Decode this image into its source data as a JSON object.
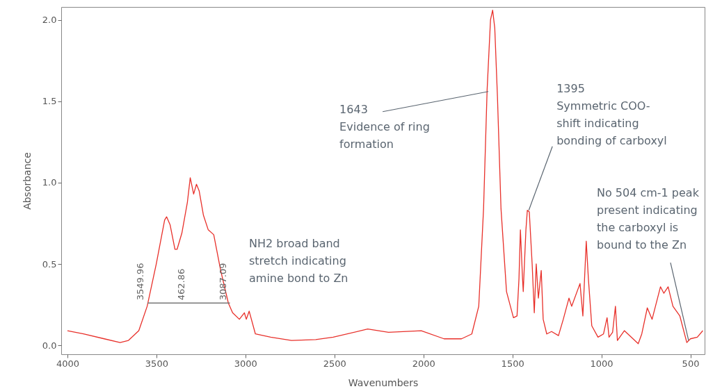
{
  "chart_data": {
    "type": "line",
    "xlabel": "Wavenumbers",
    "ylabel": "Absorbance",
    "x": [
      4000,
      3910,
      3793,
      3704,
      3657,
      3599,
      3552,
      3501,
      3454,
      3443,
      3423,
      3396,
      3384,
      3357,
      3326,
      3310,
      3291,
      3275,
      3260,
      3236,
      3209,
      3178,
      3139,
      3096,
      3072,
      3034,
      3006,
      2995,
      2979,
      2944,
      2858,
      2741,
      2605,
      2507,
      2313,
      2196,
      2012,
      1884,
      1786,
      1728,
      1689,
      1662,
      1642,
      1623,
      1611,
      1599,
      1584,
      1564,
      1533,
      1494,
      1474,
      1463,
      1455,
      1443,
      1439,
      1424,
      1416,
      1405,
      1389,
      1377,
      1366,
      1354,
      1338,
      1327,
      1307,
      1280,
      1241,
      1214,
      1182,
      1167,
      1120,
      1104,
      1085,
      1073,
      1054,
      1019,
      988,
      968,
      957,
      937,
      921,
      910,
      871,
      793,
      773,
      742,
      715,
      668,
      649,
      625,
      598,
      559,
      520,
      500,
      461,
      430
    ],
    "series": [
      {
        "color": "#e8302a",
        "values": [
          0.09,
          0.07,
          0.04,
          0.017,
          0.03,
          0.09,
          0.24,
          0.5,
          0.77,
          0.79,
          0.74,
          0.59,
          0.59,
          0.69,
          0.88,
          1.03,
          0.93,
          0.99,
          0.95,
          0.8,
          0.71,
          0.68,
          0.46,
          0.26,
          0.2,
          0.16,
          0.2,
          0.16,
          0.21,
          0.07,
          0.05,
          0.03,
          0.035,
          0.05,
          0.1,
          0.08,
          0.09,
          0.04,
          0.04,
          0.07,
          0.24,
          0.84,
          1.57,
          2.0,
          2.06,
          1.95,
          1.53,
          0.84,
          0.33,
          0.17,
          0.18,
          0.41,
          0.71,
          0.41,
          0.33,
          0.71,
          0.83,
          0.82,
          0.5,
          0.2,
          0.5,
          0.29,
          0.46,
          0.16,
          0.07,
          0.085,
          0.06,
          0.16,
          0.29,
          0.24,
          0.38,
          0.18,
          0.64,
          0.41,
          0.12,
          0.05,
          0.07,
          0.17,
          0.05,
          0.08,
          0.24,
          0.03,
          0.09,
          0.01,
          0.07,
          0.23,
          0.16,
          0.36,
          0.32,
          0.36,
          0.24,
          0.18,
          0.017,
          0.04,
          0.05,
          0.09
        ]
      }
    ],
    "xlim": [
      4035,
      420
    ],
    "ylim": [
      -0.055,
      2.08
    ],
    "xticks": [
      4000,
      3500,
      3000,
      2500,
      2000,
      1500,
      1000,
      500
    ],
    "yticks": [
      {
        "value": 0,
        "label": "0.0"
      },
      {
        "value": 0.5,
        "label": "0.5"
      },
      {
        "value": 1,
        "label": "1.0"
      },
      {
        "value": 1.5,
        "label": "1.5"
      },
      {
        "value": 2,
        "label": "2.0"
      }
    ],
    "grid": false,
    "marker": "none",
    "line_style": "solid",
    "annotations": [
      {
        "text": "3549.96",
        "x": 3549.96,
        "y": 0.26
      },
      "462.86",
      {
        "text": "3087.09",
        "x": 3087.09,
        "y": 0.26
      },
      "NH2 broad band\nstretch indicating\namine bond to Zn",
      {
        "text": "1643\nEvidence of ring\nformation",
        "x": 1635,
        "y": 1.56
      },
      {
        "text": "1395\nSymmetric COO-\nshift indicating\nbonding of carboxyl",
        "x": 1408,
        "y": 0.83
      },
      {
        "text": "No 504 cm-1 peak\npresent indicating\nthe carboxyl is\nbound to the Zn",
        "x": 510,
        "y": 0.03
      }
    ]
  }
}
